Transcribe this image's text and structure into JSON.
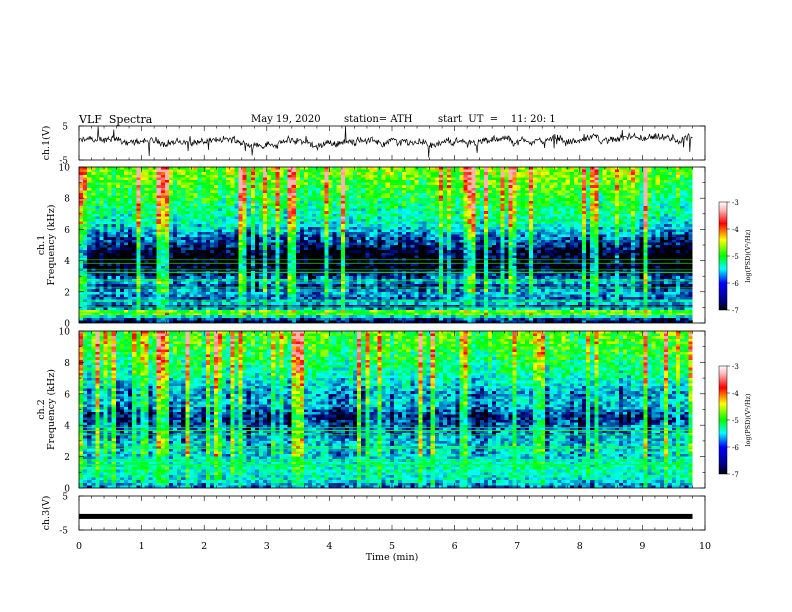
{
  "header": {
    "title": "VLF  Spectra",
    "date": "May 19, 2020",
    "station": "station= ATH",
    "start": "start  UT  =    11: 20: 1"
  },
  "chart_data": [
    {
      "type": "line",
      "name": "ch1-waveform",
      "ylabel": "ch.1(V)",
      "ylim": [
        -5,
        5
      ],
      "y_ticks": [
        "5",
        "-5"
      ],
      "xlim": [
        0,
        10
      ],
      "data_xrange": [
        0,
        9.8
      ],
      "baseline": 0.4,
      "color": "#000000"
    },
    {
      "type": "heatmap",
      "name": "ch1-spectrogram",
      "ylabel": "ch.1\nFrequency  (kHz)",
      "ylim": [
        0,
        10
      ],
      "y_ticks": [
        "0",
        "2",
        "4",
        "6",
        "8",
        "10"
      ],
      "xlim": [
        0,
        10
      ],
      "data_xrange": [
        0,
        9.8
      ],
      "colorbar": {
        "label": "log(PSD)(V²/Hz)",
        "ticks": [
          "-3",
          "-4",
          "-5",
          "-6",
          "-7"
        ],
        "range": [
          -7,
          -3
        ]
      },
      "freq_profile_khz_log_psd": [
        [
          0,
          -7
        ],
        [
          0.3,
          -6.3
        ],
        [
          0.6,
          -4.4
        ],
        [
          0.8,
          -4.6
        ],
        [
          1.0,
          -6.8
        ],
        [
          1.3,
          -5.6
        ],
        [
          1.6,
          -6.2
        ],
        [
          2.0,
          -5.8
        ],
        [
          2.4,
          -6.3
        ],
        [
          2.7,
          -5.6
        ],
        [
          3.0,
          -6.3
        ],
        [
          3.5,
          -6.9
        ],
        [
          4.5,
          -6.9
        ],
        [
          5.0,
          -6.4
        ],
        [
          5.5,
          -6.1
        ],
        [
          6.0,
          -5.6
        ],
        [
          6.5,
          -5.3
        ],
        [
          7.5,
          -5.0
        ],
        [
          9.0,
          -4.5
        ],
        [
          10,
          -4.3
        ]
      ]
    },
    {
      "type": "heatmap",
      "name": "ch2-spectrogram",
      "ylabel": "ch.2\nFrequency  (kHz)",
      "ylim": [
        0,
        10
      ],
      "y_ticks": [
        "0",
        "2",
        "4",
        "6",
        "8",
        "10"
      ],
      "xlim": [
        0,
        10
      ],
      "data_xrange": [
        0,
        9.8
      ],
      "colorbar": {
        "label": "log(PSD)(V²/Hz)",
        "ticks": [
          "-3",
          "-4",
          "-5",
          "-6",
          "-7"
        ],
        "range": [
          -7,
          -3
        ]
      },
      "freq_profile_khz_log_psd": [
        [
          0,
          -6.2
        ],
        [
          0.5,
          -5.6
        ],
        [
          1.0,
          -5.4
        ],
        [
          1.5,
          -5.3
        ],
        [
          2.0,
          -5.7
        ],
        [
          2.5,
          -5.6
        ],
        [
          3.0,
          -5.7
        ],
        [
          3.5,
          -6.0
        ],
        [
          4.5,
          -6.4
        ],
        [
          5.0,
          -6.0
        ],
        [
          5.5,
          -5.7
        ],
        [
          6.0,
          -5.9
        ],
        [
          6.5,
          -5.6
        ],
        [
          7.5,
          -5.1
        ],
        [
          9.0,
          -4.7
        ],
        [
          10,
          -4.5
        ]
      ]
    },
    {
      "type": "line",
      "name": "ch3-waveform",
      "ylabel": "ch.3(V)",
      "ylim": [
        -5,
        5
      ],
      "y_ticks": [
        "5",
        "-5"
      ],
      "xlim": [
        0,
        10
      ],
      "data_xrange": [
        0,
        9.8
      ],
      "baseline": -1.0,
      "color": "#000000"
    }
  ],
  "x_axis": {
    "label": "Time  (min)",
    "ticks": [
      "0",
      "1",
      "2",
      "3",
      "4",
      "5",
      "6",
      "7",
      "8",
      "9",
      "10"
    ],
    "range": [
      0,
      10
    ]
  }
}
